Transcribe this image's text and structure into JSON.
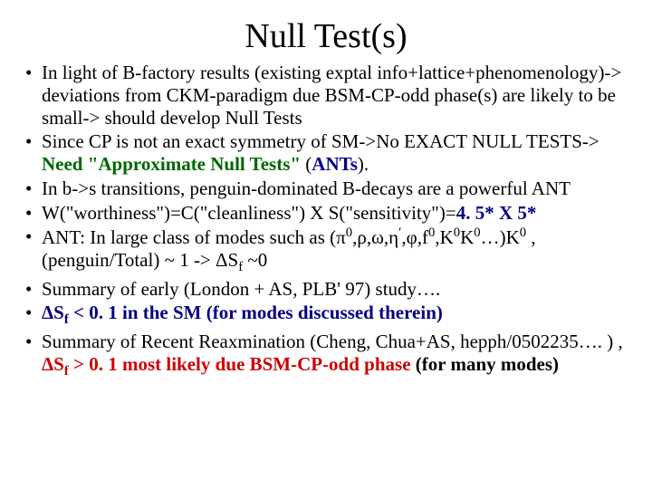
{
  "title": "Null Test(s)",
  "colors": {
    "background": "#ffffff",
    "text": "#000000",
    "green": "#006600",
    "navy": "#000080",
    "red": "#cc0000"
  },
  "typography": {
    "title_fontsize_pt": 38,
    "body_fontsize_pt": 21,
    "font_family": "Times New Roman"
  },
  "bullets": {
    "b1": "In light of B-factory results (existing exptal info+lattice+phenomenology)-> deviations from CKM-paradigm due BSM-CP-odd phase(s) are likely to be small-> should develop Null Tests",
    "b2a": "Since CP is not an exact symmetry of SM->No EXACT NULL TESTS-> ",
    "b2b": "Need \"Approximate Null Tests\"",
    "b2c": " (",
    "b2d": "ANTs",
    "b2e": ").",
    "b3": "In b->s transitions, penguin-dominated B-decays are a powerful ANT",
    "b4a": "W(\"worthiness\")=C(\"cleanliness\") X S(\"sensitivity\")=",
    "b4b": "4. 5* X 5*",
    "b5a": " ANT: In large class of modes such as (π",
    "b5b": ",ρ,ω,η",
    "b5c": ",φ,f",
    "b5d": ",K",
    "b5e": "K",
    "b5f": "…)K",
    "b5g": " , (penguin/Total) ~ 1 -> ΔS",
    "b5h": "  ~0",
    "b6": "Summary of early (London + AS, PLB' 97) study….",
    "b7a": "ΔS",
    "b7b": " < 0. 1 in the SM (for modes discussed therein)",
    "b8a": "Summary of Recent Reaxmination (Cheng, Chua+AS, hepph/0502235…. ) , ",
    "b8b": "ΔS",
    "b8c": " > 0. 1 most likely due BSM-CP-odd phase",
    "b8d": " (for many modes)",
    "sup0": "0",
    "supPrime": "ʹ",
    "subf": "f"
  }
}
